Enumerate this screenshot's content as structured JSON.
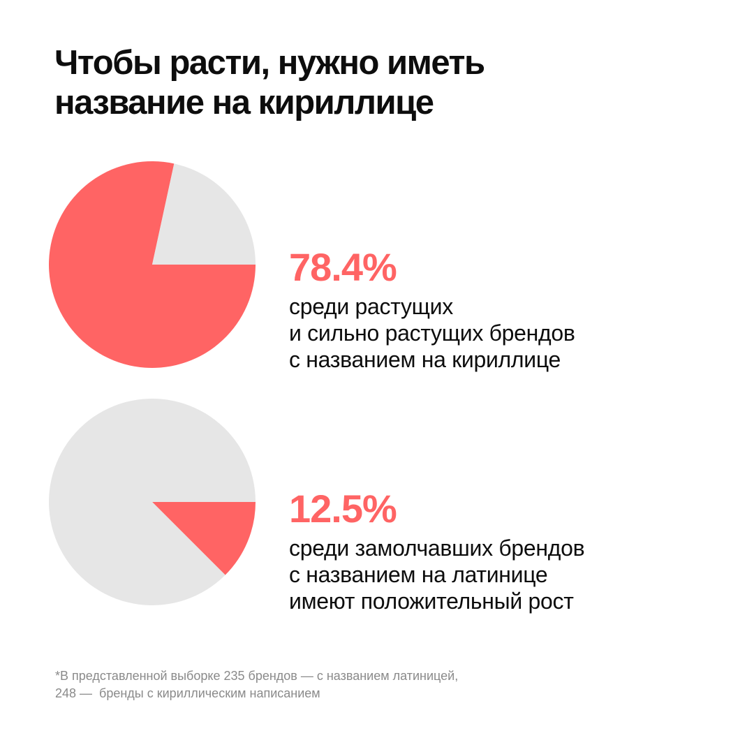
{
  "title": {
    "line1": "Чтобы расти, нужно иметь",
    "line2": "название на кириллице"
  },
  "colors": {
    "accent": "#FF6464",
    "rest": "#E6E6E6",
    "text": "#0D0D0D",
    "footnote": "#8A8A8A"
  },
  "chart_data": [
    {
      "type": "pie",
      "slices": [
        {
          "label": "",
          "value": 78.4,
          "color": "#FF6464"
        },
        {
          "label": "",
          "value": 21.6,
          "color": "#E6E6E6"
        }
      ],
      "stat": {
        "value": "78.4%",
        "lines": [
          "среди растущих",
          "и сильно растущих брендов",
          "с названием на кириллице"
        ]
      }
    },
    {
      "type": "pie",
      "slices": [
        {
          "label": "",
          "value": 12.5,
          "color": "#FF6464"
        },
        {
          "label": "",
          "value": 87.5,
          "color": "#E6E6E6"
        }
      ],
      "stat": {
        "value": "12.5%",
        "lines": [
          "среди замолчавших брендов",
          "с названием на латинице",
          "имеют положительный рост"
        ]
      }
    }
  ],
  "footnote": {
    "line1": "*В представленной выборке 235 брендов — с названием латиницей,",
    "line2": "248 —  бренды с кириллическим написанием"
  }
}
